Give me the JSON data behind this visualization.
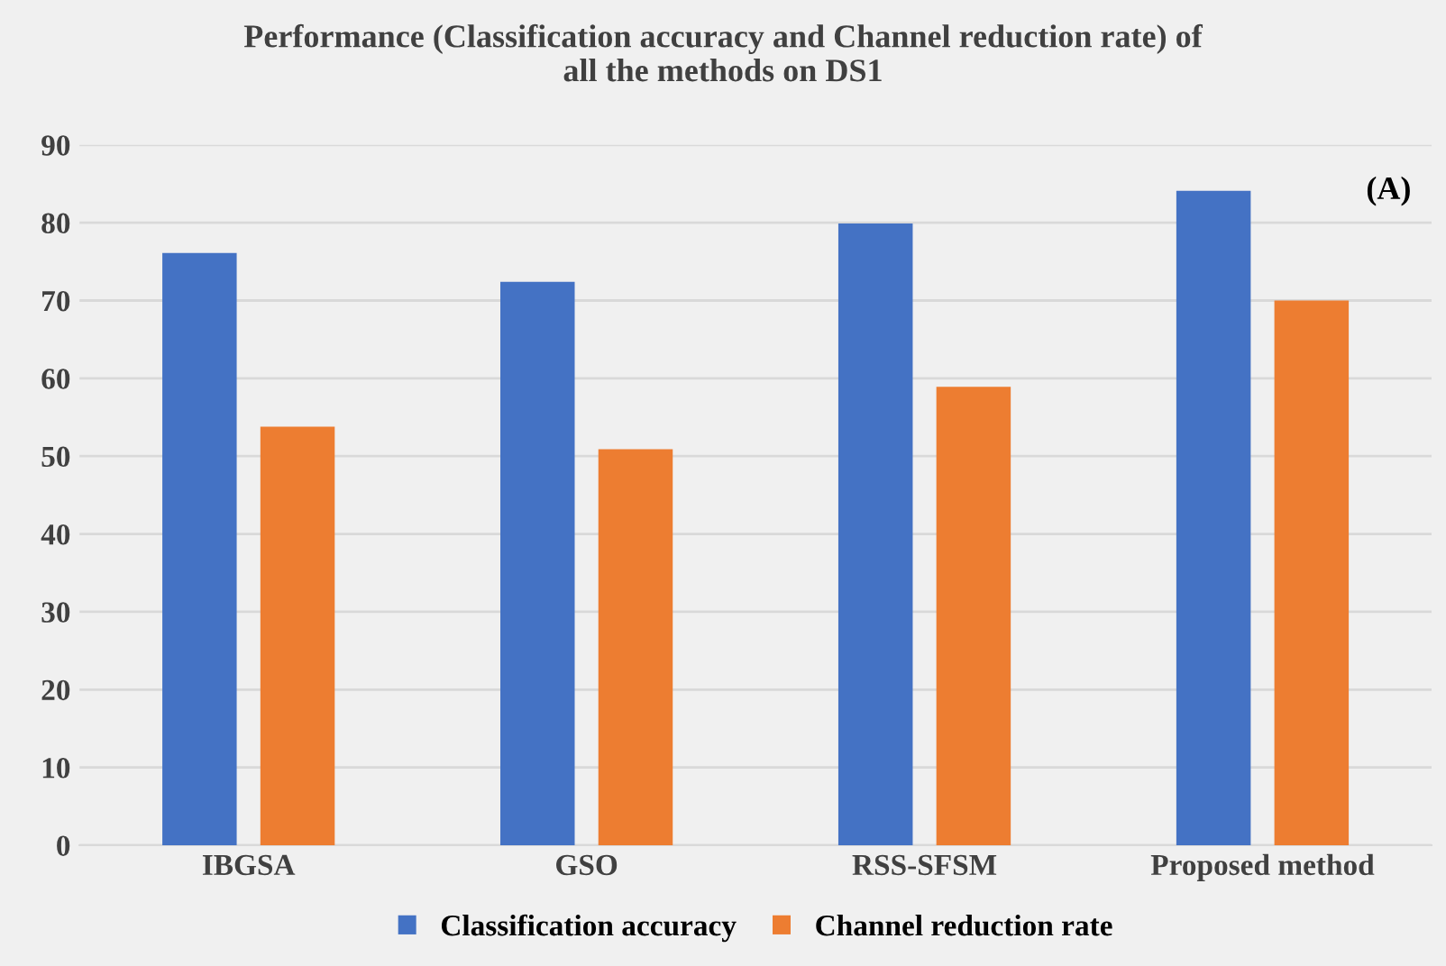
{
  "chart_data": {
    "type": "bar",
    "title": "Performance (Classification accuracy and Channel reduction rate) of\nall the methods on DS1",
    "categories": [
      "IBGSA",
      "GSO",
      "RSS-SFSM",
      "Proposed method"
    ],
    "series": [
      {
        "name": "Classification accuracy",
        "color": "#4472c4",
        "values": [
          76.1,
          72.4,
          79.9,
          84.1
        ]
      },
      {
        "name": "Channel reduction rate",
        "color": "#ed7d31",
        "values": [
          53.8,
          50.9,
          58.9,
          70.0
        ]
      }
    ],
    "ylim": [
      0,
      90
    ],
    "yticks": [
      0,
      10,
      20,
      30,
      40,
      50,
      60,
      70,
      80,
      90
    ],
    "grid": "y",
    "legend": "bottom",
    "annotations": [
      "(A)"
    ]
  }
}
